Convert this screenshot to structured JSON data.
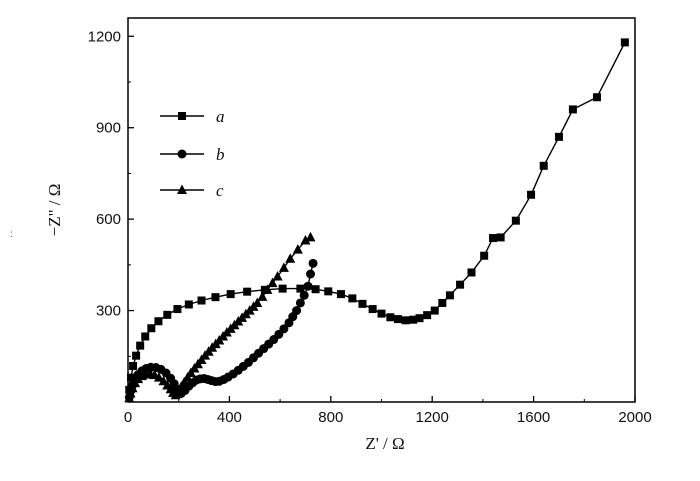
{
  "chart_data": {
    "type": "scatter",
    "title": "",
    "xlabel": "Z' / Ω",
    "ylabel": "−Z\" / Ω",
    "xlim": [
      0,
      2000
    ],
    "ylim": [
      0,
      1260
    ],
    "xticks": [
      0,
      400,
      800,
      1200,
      1600,
      2000
    ],
    "yticks": [
      300,
      600,
      900,
      1200
    ],
    "grid": false,
    "legend_position": "top-left",
    "stray_text": ":",
    "series": [
      {
        "name": "a",
        "marker": "square",
        "color": "#000000",
        "x": [
          5,
          12,
          20,
          32,
          48,
          68,
          92,
          120,
          155,
          195,
          240,
          290,
          345,
          405,
          470,
          540,
          610,
          680,
          740,
          790,
          840,
          885,
          925,
          965,
          1000,
          1035,
          1065,
          1095,
          1125,
          1150,
          1180,
          1210,
          1240,
          1270,
          1310,
          1355,
          1405,
          1440,
          1470,
          1530,
          1590,
          1640,
          1700,
          1755,
          1850,
          1960
        ],
        "y": [
          40,
          80,
          118,
          152,
          185,
          215,
          242,
          265,
          286,
          305,
          320,
          333,
          344,
          354,
          362,
          368,
          372,
          372,
          370,
          363,
          354,
          340,
          322,
          305,
          290,
          278,
          272,
          268,
          270,
          275,
          285,
          300,
          325,
          350,
          385,
          425,
          480,
          538,
          540,
          595,
          680,
          775,
          870,
          960,
          1000,
          1180
        ]
      },
      {
        "name": "b",
        "marker": "circle",
        "color": "#000000",
        "x": [
          5,
          10,
          18,
          28,
          40,
          55,
          72,
          90,
          110,
          130,
          150,
          168,
          182,
          195,
          210,
          225,
          240,
          255,
          270,
          285,
          300,
          315,
          330,
          345,
          360,
          378,
          395,
          415,
          435,
          455,
          475,
          495,
          515,
          535,
          555,
          575,
          595,
          615,
          635,
          650,
          665,
          680,
          695,
          710,
          720,
          730
        ],
        "y": [
          15,
          35,
          55,
          75,
          90,
          102,
          110,
          114,
          113,
          107,
          95,
          78,
          60,
          42,
          28,
          38,
          52,
          63,
          72,
          76,
          77,
          74,
          70,
          67,
          68,
          74,
          82,
          92,
          104,
          117,
          130,
          145,
          160,
          175,
          190,
          205,
          222,
          240,
          260,
          280,
          300,
          325,
          350,
          380,
          420,
          455
        ]
      },
      {
        "name": "c",
        "marker": "triangle",
        "color": "#000000",
        "x": [
          5,
          10,
          18,
          28,
          40,
          55,
          70,
          88,
          105,
          122,
          140,
          155,
          168,
          178,
          188,
          198,
          210,
          222,
          235,
          248,
          262,
          276,
          290,
          304,
          318,
          332,
          346,
          360,
          375,
          390,
          405,
          420,
          435,
          450,
          465,
          480,
          495,
          510,
          530,
          550,
          570,
          590,
          615,
          640,
          670,
          700,
          720
        ],
        "y": [
          12,
          28,
          45,
          62,
          75,
          85,
          90,
          92,
          88,
          80,
          68,
          54,
          42,
          30,
          22,
          34,
          50,
          65,
          80,
          95,
          110,
          124,
          138,
          152,
          165,
          178,
          190,
          202,
          215,
          228,
          240,
          252,
          264,
          276,
          288,
          300,
          312,
          325,
          345,
          368,
          390,
          412,
          440,
          470,
          500,
          530,
          540
        ]
      }
    ]
  }
}
